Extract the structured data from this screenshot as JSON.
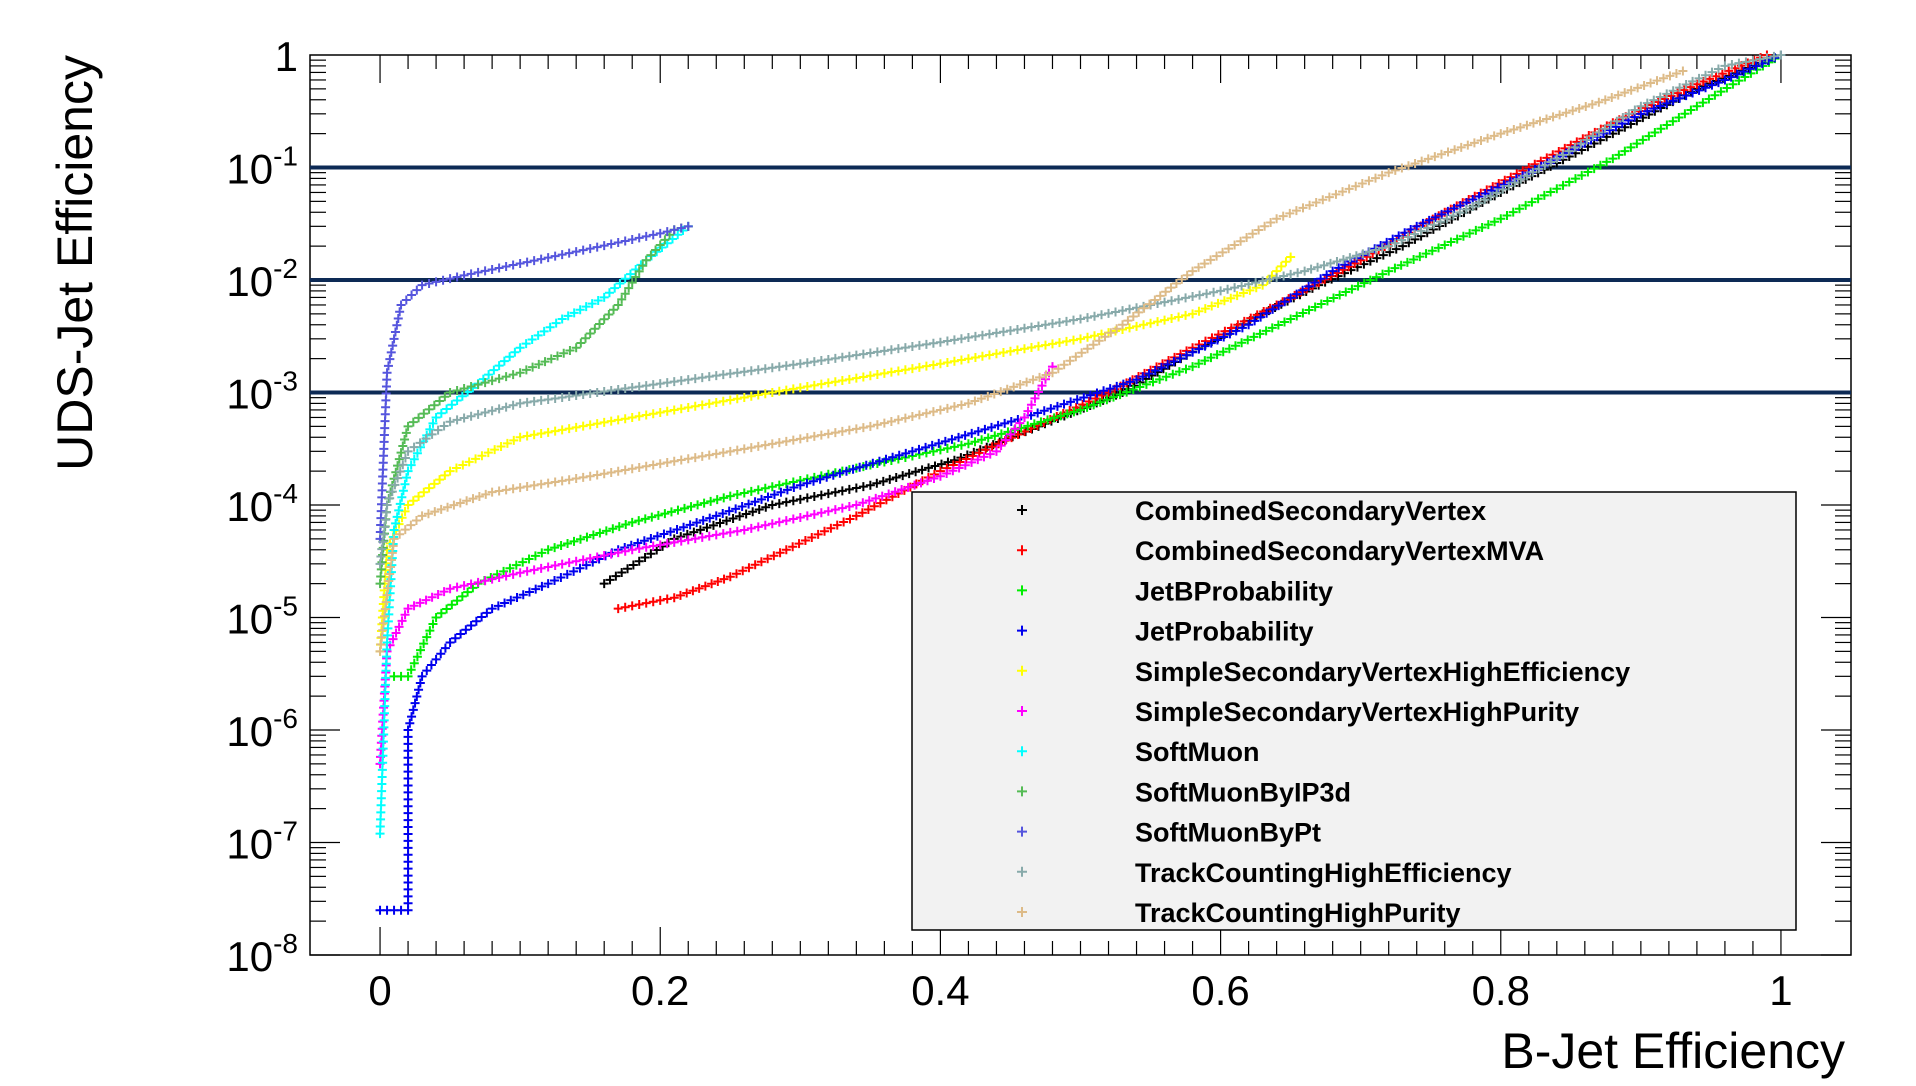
{
  "chart_data": {
    "type": "scatter",
    "xlabel": "B-Jet Efficiency",
    "ylabel": "UDS-Jet Efficiency",
    "xlim": [
      -0.05,
      1.05
    ],
    "ylim": [
      1e-08,
      1
    ],
    "yscale": "log",
    "grid": false,
    "legend_position": "bottom-right",
    "x_ticks": [
      {
        "value": 0,
        "label": "0"
      },
      {
        "value": 0.2,
        "label": "0.2"
      },
      {
        "value": 0.4,
        "label": "0.4"
      },
      {
        "value": 0.6,
        "label": "0.6"
      },
      {
        "value": 0.8,
        "label": "0.8"
      },
      {
        "value": 1,
        "label": "1"
      }
    ],
    "y_ticks": [
      {
        "value": 1,
        "base": "1",
        "exp": ""
      },
      {
        "value": 0.1,
        "base": "10",
        "exp": "-1"
      },
      {
        "value": 0.01,
        "base": "10",
        "exp": "-2"
      },
      {
        "value": 0.001,
        "base": "10",
        "exp": "-3"
      },
      {
        "value": 0.0001,
        "base": "10",
        "exp": "-4"
      },
      {
        "value": 1e-05,
        "base": "10",
        "exp": "-5"
      },
      {
        "value": 1e-06,
        "base": "10",
        "exp": "-6"
      },
      {
        "value": 1e-07,
        "base": "10",
        "exp": "-7"
      },
      {
        "value": 1e-08,
        "base": "10",
        "exp": "-8"
      }
    ],
    "reference_lines": [
      {
        "y": 0.1,
        "color": "#0d2a55"
      },
      {
        "y": 0.01,
        "color": "#0d2a55"
      },
      {
        "y": 0.001,
        "color": "#0d2a55"
      }
    ],
    "series": [
      {
        "name": "CombinedSecondaryVertex",
        "color": "#000000",
        "points": [
          [
            0.16,
            2e-05
          ],
          [
            0.21,
            5e-05
          ],
          [
            0.28,
            0.0001
          ],
          [
            0.35,
            0.00015
          ],
          [
            0.41,
            0.00025
          ],
          [
            0.47,
            0.0005
          ],
          [
            0.53,
            0.001
          ],
          [
            0.58,
            0.0023
          ],
          [
            0.63,
            0.005
          ],
          [
            0.67,
            0.009
          ],
          [
            0.73,
            0.02
          ],
          [
            0.8,
            0.06
          ],
          [
            0.88,
            0.2
          ],
          [
            0.94,
            0.5
          ],
          [
            1.0,
            1.0
          ]
        ]
      },
      {
        "name": "CombinedSecondaryVertexMVA",
        "color": "#ff0000",
        "points": [
          [
            0.17,
            1.2e-05
          ],
          [
            0.21,
            1.5e-05
          ],
          [
            0.25,
            2.3e-05
          ],
          [
            0.29,
            4e-05
          ],
          [
            0.34,
            8e-05
          ],
          [
            0.4,
            0.0002
          ],
          [
            0.46,
            0.00045
          ],
          [
            0.52,
            0.001
          ],
          [
            0.58,
            0.0025
          ],
          [
            0.64,
            0.006
          ],
          [
            0.7,
            0.015
          ],
          [
            0.76,
            0.04
          ],
          [
            0.82,
            0.1
          ],
          [
            0.88,
            0.25
          ],
          [
            0.94,
            0.55
          ],
          [
            0.99,
            1.0
          ]
        ]
      },
      {
        "name": "JetBProbability",
        "color": "#00ee00",
        "points": [
          [
            0.01,
            3e-06
          ],
          [
            0.02,
            3e-06
          ],
          [
            0.04,
            1e-05
          ],
          [
            0.07,
            2e-05
          ],
          [
            0.12,
            4e-05
          ],
          [
            0.18,
            7e-05
          ],
          [
            0.25,
            0.00012
          ],
          [
            0.33,
            0.0002
          ],
          [
            0.42,
            0.00035
          ],
          [
            0.5,
            0.0007
          ],
          [
            0.58,
            0.0017
          ],
          [
            0.65,
            0.0045
          ],
          [
            0.72,
            0.012
          ],
          [
            0.8,
            0.035
          ],
          [
            0.88,
            0.12
          ],
          [
            0.94,
            0.35
          ],
          [
            1.0,
            1.0
          ]
        ]
      },
      {
        "name": "JetProbability",
        "color": "#0000ee",
        "points": [
          [
            0.0,
            2.5e-08
          ],
          [
            0.02,
            2.5e-08
          ],
          [
            0.02,
            1e-06
          ],
          [
            0.03,
            3e-06
          ],
          [
            0.05,
            6e-06
          ],
          [
            0.08,
            1.2e-05
          ],
          [
            0.12,
            2e-05
          ],
          [
            0.17,
            4e-05
          ],
          [
            0.24,
            8e-05
          ],
          [
            0.3,
            0.00015
          ],
          [
            0.38,
            0.0003
          ],
          [
            0.46,
            0.0006
          ],
          [
            0.54,
            0.0013
          ],
          [
            0.62,
            0.004
          ],
          [
            0.68,
            0.012
          ],
          [
            0.74,
            0.03
          ],
          [
            0.82,
            0.09
          ],
          [
            0.9,
            0.3
          ],
          [
            0.96,
            0.6
          ],
          [
            1.0,
            1.0
          ]
        ]
      },
      {
        "name": "SimpleSecondaryVertexHighEfficiency",
        "color": "#ffff00",
        "points": [
          [
            0.0,
            5e-06
          ],
          [
            0.005,
            4e-05
          ],
          [
            0.02,
            0.0001
          ],
          [
            0.05,
            0.0002
          ],
          [
            0.1,
            0.0004
          ],
          [
            0.18,
            0.0006
          ],
          [
            0.28,
            0.001
          ],
          [
            0.4,
            0.0018
          ],
          [
            0.5,
            0.003
          ],
          [
            0.58,
            0.005
          ],
          [
            0.63,
            0.009
          ],
          [
            0.65,
            0.016
          ]
        ]
      },
      {
        "name": "SimpleSecondaryVertexHighPurity",
        "color": "#ff00ff",
        "points": [
          [
            0.0,
            5e-07
          ],
          [
            0.005,
            5e-06
          ],
          [
            0.02,
            1.2e-05
          ],
          [
            0.05,
            1.8e-05
          ],
          [
            0.1,
            2.5e-05
          ],
          [
            0.18,
            4e-05
          ],
          [
            0.26,
            6e-05
          ],
          [
            0.34,
            0.0001
          ],
          [
            0.4,
            0.00018
          ],
          [
            0.44,
            0.0003
          ],
          [
            0.46,
            0.0006
          ],
          [
            0.48,
            0.0017
          ]
        ]
      },
      {
        "name": "SoftMuon",
        "color": "#00ffff",
        "points": [
          [
            0.0,
            1.2e-07
          ],
          [
            0.005,
            6e-06
          ],
          [
            0.01,
            6e-05
          ],
          [
            0.02,
            0.0002
          ],
          [
            0.04,
            0.0006
          ],
          [
            0.07,
            0.0012
          ],
          [
            0.1,
            0.0025
          ],
          [
            0.13,
            0.0045
          ],
          [
            0.16,
            0.007
          ],
          [
            0.19,
            0.015
          ],
          [
            0.22,
            0.03
          ]
        ]
      },
      {
        "name": "SoftMuonByIP3d",
        "color": "#55bb55",
        "points": [
          [
            0.0,
            2e-05
          ],
          [
            0.005,
            0.0001
          ],
          [
            0.02,
            0.0005
          ],
          [
            0.05,
            0.001
          ],
          [
            0.1,
            0.0015
          ],
          [
            0.14,
            0.0025
          ],
          [
            0.17,
            0.006
          ],
          [
            0.19,
            0.015
          ],
          [
            0.21,
            0.028
          ],
          [
            0.22,
            0.03
          ]
        ]
      },
      {
        "name": "SoftMuonByPt",
        "color": "#5555dd",
        "points": [
          [
            0.0,
            5e-05
          ],
          [
            0.005,
            0.0015
          ],
          [
            0.015,
            0.006
          ],
          [
            0.03,
            0.009
          ],
          [
            0.06,
            0.011
          ],
          [
            0.1,
            0.014
          ],
          [
            0.15,
            0.019
          ],
          [
            0.2,
            0.026
          ],
          [
            0.22,
            0.03
          ]
        ]
      },
      {
        "name": "TrackCountingHighEfficiency",
        "color": "#88aaaa",
        "points": [
          [
            0.0,
            3e-05
          ],
          [
            0.005,
            0.0001
          ],
          [
            0.02,
            0.0003
          ],
          [
            0.05,
            0.00055
          ],
          [
            0.1,
            0.0008
          ],
          [
            0.2,
            0.0012
          ],
          [
            0.3,
            0.0018
          ],
          [
            0.4,
            0.0028
          ],
          [
            0.5,
            0.0045
          ],
          [
            0.6,
            0.008
          ],
          [
            0.66,
            0.012
          ],
          [
            0.72,
            0.02
          ],
          [
            0.78,
            0.045
          ],
          [
            0.84,
            0.12
          ],
          [
            0.9,
            0.35
          ],
          [
            0.96,
            0.8
          ],
          [
            1.0,
            1.0
          ]
        ]
      },
      {
        "name": "TrackCountingHighPurity",
        "color": "#ddbb88",
        "points": [
          [
            0.0,
            5e-06
          ],
          [
            0.01,
            5e-05
          ],
          [
            0.03,
            8e-05
          ],
          [
            0.08,
            0.00013
          ],
          [
            0.15,
            0.00018
          ],
          [
            0.25,
            0.0003
          ],
          [
            0.35,
            0.0005
          ],
          [
            0.42,
            0.0008
          ],
          [
            0.48,
            0.0015
          ],
          [
            0.53,
            0.004
          ],
          [
            0.58,
            0.012
          ],
          [
            0.64,
            0.035
          ],
          [
            0.72,
            0.09
          ],
          [
            0.8,
            0.2
          ],
          [
            0.87,
            0.38
          ],
          [
            0.93,
            0.72
          ]
        ]
      }
    ]
  }
}
